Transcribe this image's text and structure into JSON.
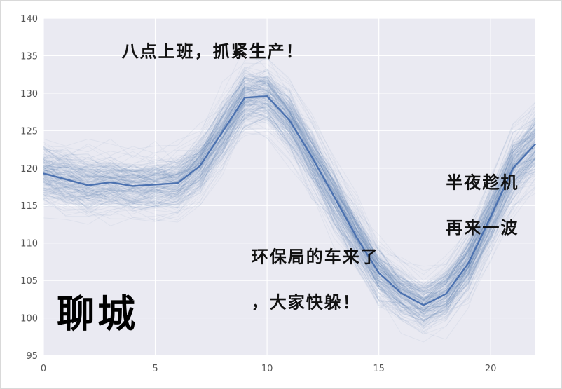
{
  "chart_data": {
    "type": "line",
    "title": "",
    "xlabel": "",
    "ylabel": "",
    "xlim": [
      0,
      22
    ],
    "ylim": [
      95,
      140
    ],
    "x_ticks": [
      "0",
      "5",
      "10",
      "15",
      "20"
    ],
    "y_ticks": [
      "95",
      "100",
      "105",
      "110",
      "115",
      "120",
      "125",
      "130",
      "135",
      "140"
    ],
    "grid": true,
    "background_color": "#eaeaf2",
    "line_color": "#4c72b0",
    "x": [
      0,
      1,
      2,
      3,
      4,
      5,
      6,
      7,
      8,
      9,
      10,
      11,
      12,
      13,
      14,
      15,
      16,
      17,
      18,
      19,
      20,
      21,
      22
    ],
    "series": [
      {
        "name": "",
        "values": [
          119.3,
          118.5,
          117.7,
          118.1,
          117.6,
          117.8,
          118.0,
          120.3,
          124.8,
          129.4,
          129.6,
          126.4,
          121.5,
          116.2,
          110.8,
          106.0,
          103.3,
          101.7,
          103.2,
          107.3,
          113.5,
          120.0,
          123.2
        ]
      }
    ],
    "spread": [
      3.5,
      3.5,
      3.5,
      3.3,
      3.3,
      3.3,
      3.4,
      3.5,
      3.5,
      3.5,
      3.5,
      3.6,
      3.7,
      3.6,
      3.5,
      3.3,
      3.1,
      3.0,
      3.2,
      3.5,
      3.8,
      4.0,
      4.2
    ],
    "annotations": [
      {
        "text": "八点上班，抓紧生产！",
        "x": 3.5,
        "y": 134.8
      },
      {
        "text": "半夜趁机",
        "x": 18.0,
        "y": 117.3
      },
      {
        "text": "再来一波",
        "x": 18.0,
        "y": 111.3
      },
      {
        "text": "环保局的车来了",
        "x": 9.3,
        "y": 107.4
      },
      {
        "text": "，大家快躲！",
        "x": 9.3,
        "y": 101.3
      },
      {
        "text": "聊城",
        "x": 0.6,
        "y": 98.8
      }
    ]
  }
}
